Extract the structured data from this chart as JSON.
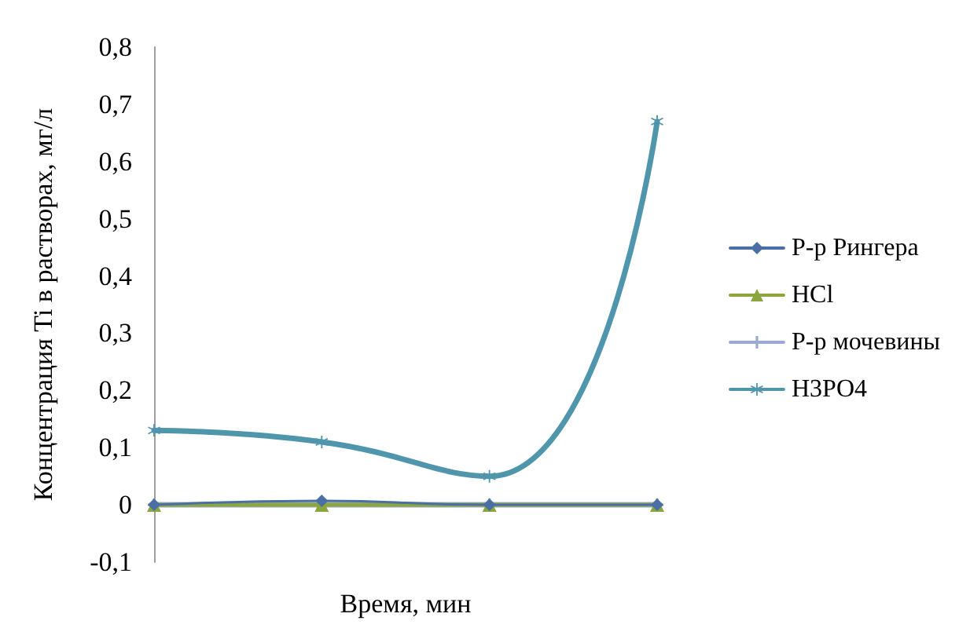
{
  "chart_data": {
    "type": "line",
    "xlabel": "Время, мин",
    "ylabel": "Концентрация Ti в растворах, мг/л",
    "categories": [
      null,
      null,
      null,
      null
    ],
    "series": [
      {
        "name": "Р-р Рингера",
        "color": "#4a6fa5",
        "marker": "diamond",
        "values": [
          0,
          0.007,
          0,
          0
        ]
      },
      {
        "name": "HCl",
        "color": "#8aa63c",
        "marker": "triangle",
        "values": [
          0,
          0,
          0,
          0
        ]
      },
      {
        "name": "Р-р мочевины",
        "color": "#9aaad4",
        "marker": "cross",
        "values": [
          0,
          0,
          0,
          0
        ]
      },
      {
        "name": "H3PO4",
        "color": "#4f96ad",
        "marker": "star",
        "values": [
          0.13,
          0.11,
          0.05,
          0.67
        ]
      }
    ],
    "ylim": [
      -0.1,
      0.8
    ],
    "yticks": [
      {
        "value": -0.1,
        "label": "-0,1"
      },
      0,
      {
        "value": 0.1,
        "label": "0,1"
      },
      {
        "value": 0.2,
        "label": "0,2"
      },
      {
        "value": 0.3,
        "label": "0,3"
      },
      {
        "value": 0.4,
        "label": "0,4"
      },
      {
        "value": 0.5,
        "label": "0,5"
      },
      {
        "value": 0.6,
        "label": "0,6"
      },
      {
        "value": 0.7,
        "label": "0,7"
      },
      {
        "value": 0.8,
        "label": "0,8"
      }
    ],
    "grid": false,
    "legend": "right",
    "tick_labels": "y"
  }
}
